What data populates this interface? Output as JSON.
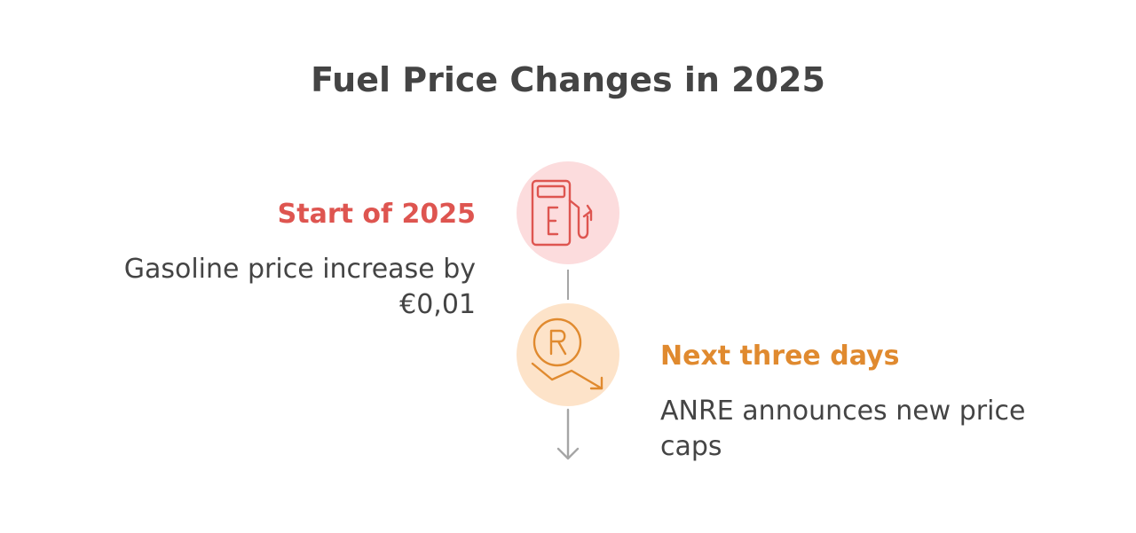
{
  "title": "Fuel Price Changes in 2025",
  "steps": [
    {
      "heading": "Start of 2025",
      "description": "Gasoline price increase by €0,01",
      "icon": "fuel-pump-icon",
      "color": "#de5550",
      "bg": "#fcdcdd"
    },
    {
      "heading": "Next three days",
      "description": "ANRE announces new price caps",
      "icon": "price-down-icon",
      "color": "#e08a2f",
      "bg": "#fde3c9"
    }
  ],
  "connector_color": "#a6a6a6"
}
